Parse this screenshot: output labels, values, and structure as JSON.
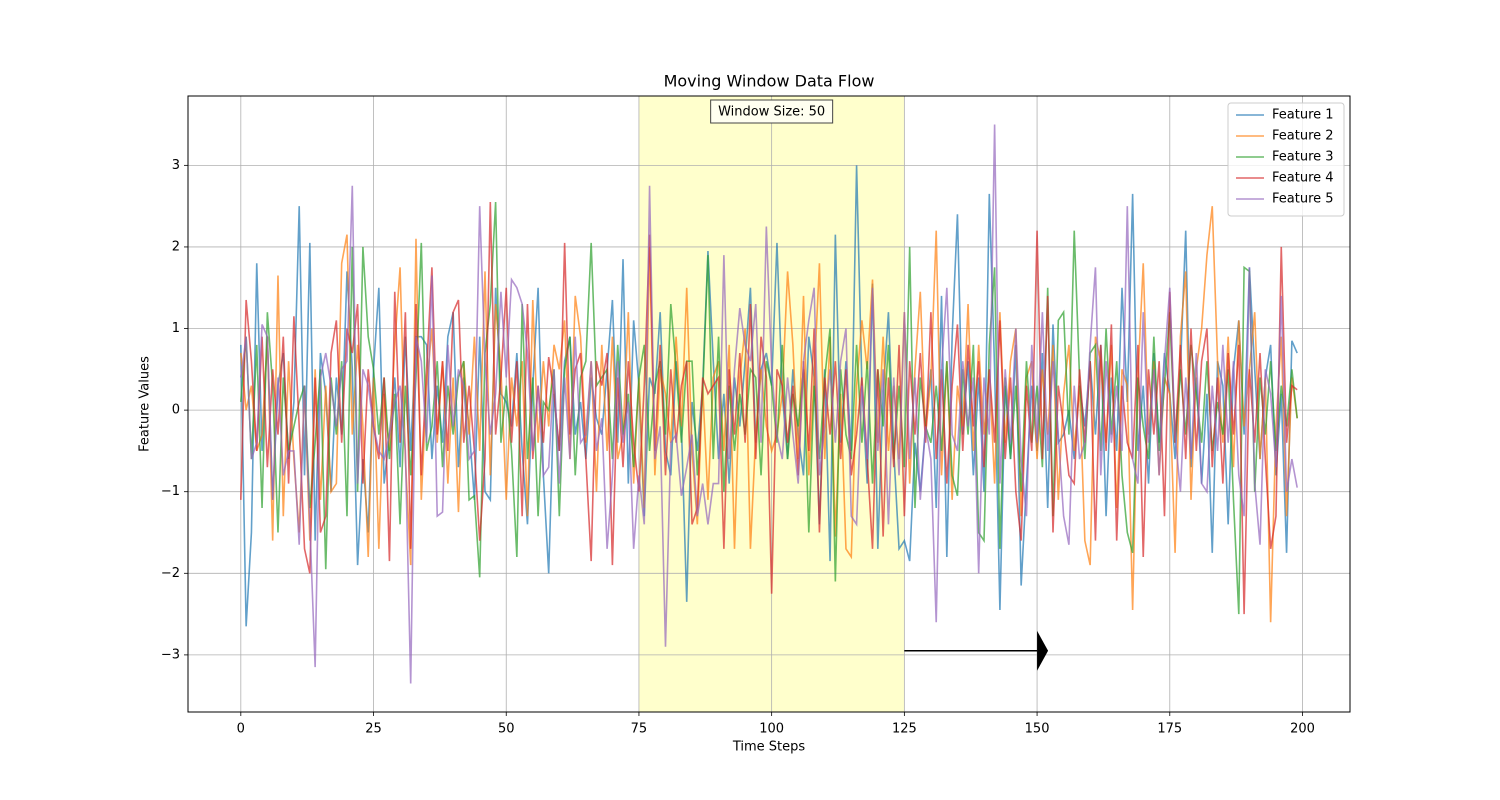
{
  "chart_data": {
    "type": "line",
    "title": "Moving Window Data Flow",
    "xlabel": "Time Steps",
    "ylabel": "Feature Values",
    "x": [
      0,
      1,
      2,
      3,
      4,
      5,
      6,
      7,
      8,
      9,
      10,
      11,
      12,
      13,
      14,
      15,
      16,
      17,
      18,
      19,
      20,
      21,
      22,
      23,
      24,
      25,
      26,
      27,
      28,
      29,
      30,
      31,
      32,
      33,
      34,
      35,
      36,
      37,
      38,
      39,
      40,
      41,
      42,
      43,
      44,
      45,
      46,
      47,
      48,
      49,
      50,
      51,
      52,
      53,
      54,
      55,
      56,
      57,
      58,
      59,
      60,
      61,
      62,
      63,
      64,
      65,
      66,
      67,
      68,
      69,
      70,
      71,
      72,
      73,
      74,
      75,
      76,
      77,
      78,
      79,
      80,
      81,
      82,
      83,
      84,
      85,
      86,
      87,
      88,
      89,
      90,
      91,
      92,
      93,
      94,
      95,
      96,
      97,
      98,
      99,
      100,
      101,
      102,
      103,
      104,
      105,
      106,
      107,
      108,
      109,
      110,
      111,
      112,
      113,
      114,
      115,
      116,
      117,
      118,
      119,
      120,
      121,
      122,
      123,
      124,
      125,
      126,
      127,
      128,
      129,
      130,
      131,
      132,
      133,
      134,
      135,
      136,
      137,
      138,
      139,
      140,
      141,
      142,
      143,
      144,
      145,
      146,
      147,
      148,
      149,
      150,
      151,
      152,
      153,
      154,
      155,
      156,
      157,
      158,
      159,
      160,
      161,
      162,
      163,
      164,
      165,
      166,
      167,
      168,
      169,
      170,
      171,
      172,
      173,
      174,
      175,
      176,
      177,
      178,
      179,
      180,
      181,
      182,
      183,
      184,
      185,
      186,
      187,
      188,
      189,
      190,
      191,
      192,
      193,
      194,
      195,
      196,
      197,
      198,
      199
    ],
    "series": [
      {
        "name": "Feature 1",
        "color": "#1f77b4",
        "values": [
          0.8,
          -2.65,
          -1.5,
          1.8,
          -0.5,
          0.9,
          -1.1,
          0.3,
          0.7,
          -0.6,
          0.1,
          2.5,
          -0.8,
          2.05,
          -1.6,
          0.7,
          0.2,
          -1.0,
          0.4,
          -0.3,
          1.7,
          0.5,
          -1.9,
          -0.6,
          -1.5,
          0.5,
          1.5,
          -0.9,
          -0.3,
          0.4,
          -0.7,
          0.9,
          -0.5,
          0.9,
          0.9,
          0.8,
          -0.6,
          0.3,
          -0.4,
          0.9,
          1.2,
          -0.7,
          0.4,
          -0.2,
          -1.1,
          0.9,
          -1.0,
          -1.1,
          1.5,
          0.2,
          0.1,
          -0.2,
          0.7,
          -0.5,
          -1.4,
          0.3,
          1.5,
          -0.8,
          -2.0,
          0.2,
          -0.5,
          0.6,
          0.9,
          -0.3,
          0.1,
          -0.6,
          0.4,
          -0.1,
          -0.3,
          0.5,
          1.35,
          -0.4,
          1.85,
          -0.9,
          1.1,
          0.3,
          -1.3,
          0.4,
          0.2,
          1.2,
          -0.5,
          -0.8,
          0.6,
          -0.2,
          -2.35,
          0.1,
          -0.5,
          0.3,
          1.95,
          0.6,
          -0.6,
          0.2,
          -0.9,
          0.4,
          -0.2,
          0.6,
          1.5,
          -0.4,
          0.5,
          0.7,
          0.3,
          2.05,
          0.2,
          -0.6,
          0.5,
          -0.3,
          -0.8,
          0.9,
          0.4,
          -1.4,
          0.5,
          -1.85,
          2.15,
          -0.4,
          0.6,
          -0.5,
          3.0,
          0.3,
          -0.9,
          1.55,
          -1.7,
          0.2,
          1.2,
          -0.5,
          -1.7,
          -1.6,
          -1.85,
          -0.4,
          -1.0,
          -0.2,
          0.5,
          -1.2,
          1.4,
          -1.8,
          0.9,
          2.4,
          -0.3,
          0.6,
          -0.8,
          0.4,
          -1.0,
          2.65,
          0.5,
          -2.45,
          0.3,
          -0.6,
          0.8,
          -2.15,
          -0.9,
          0.3,
          -0.5,
          0.7,
          -1.2,
          1.05,
          -0.4,
          -0.3,
          0.0,
          -0.6,
          0.3,
          -0.2,
          0.6,
          -0.3,
          0.8,
          -1.3,
          0.4,
          -0.5,
          1.5,
          0.1,
          2.65,
          -0.5,
          0.3,
          -0.9,
          0.7,
          -0.4,
          0.7,
          0.2,
          -0.6,
          0.5,
          2.2,
          -0.7,
          0.4,
          -0.9,
          0.2,
          -1.75,
          0.6,
          0.3,
          -1.4,
          0.5,
          1.1,
          -0.3,
          1.75,
          0.5,
          -0.6,
          0.4,
          0.8,
          -0.8,
          0.2,
          -1.75,
          0.85,
          0.7
        ]
      },
      {
        "name": "Feature 2",
        "color": "#ff7f0e",
        "values": [
          0.7,
          0.0,
          0.3,
          -0.5,
          -0.3,
          0.9,
          -1.6,
          1.65,
          -1.3,
          0.6,
          -0.6,
          -1.5,
          0.3,
          -1.6,
          0.5,
          -1.1,
          0.3,
          -1.0,
          -0.9,
          1.8,
          2.15,
          -0.3,
          0.8,
          -0.2,
          -1.8,
          0.4,
          -1.7,
          0.2,
          -0.5,
          0.8,
          1.75,
          -0.6,
          -1.9,
          2.1,
          -1.1,
          0.3,
          1.0,
          -0.4,
          0.6,
          -0.9,
          0.4,
          -1.25,
          0.6,
          -0.3,
          0.9,
          -0.5,
          1.7,
          -0.8,
          1.3,
          0.5,
          -1.1,
          0.4,
          -0.2,
          0.6,
          -1.3,
          1.35,
          -0.4,
          0.6,
          -0.2,
          0.8,
          0.5,
          1.1,
          -0.6,
          1.4,
          0.9,
          -0.4,
          0.6,
          -1.0,
          0.8,
          -0.5,
          0.9,
          -0.6,
          -0.3,
          1.2,
          -0.9,
          0.4,
          -1.2,
          2.0,
          -0.8,
          0.5,
          0.2,
          -0.4,
          0.9,
          -0.2,
          1.5,
          -0.5,
          -1.4,
          0.3,
          -1.1,
          0.4,
          0.6,
          -0.5,
          0.8,
          -1.7,
          0.4,
          1.0,
          -1.7,
          -0.3,
          0.5,
          -0.2,
          -0.5,
          -0.3,
          0.2,
          1.7,
          0.8,
          -0.6,
          1.4,
          -0.8,
          0.4,
          1.8,
          -0.6,
          0.9,
          -1.55,
          0.2,
          -1.7,
          -1.8,
          0.3,
          1.1,
          0.5,
          1.6,
          -0.4,
          0.9,
          -0.5,
          0.3,
          -0.6,
          1.2,
          -0.9,
          0.5,
          1.45,
          -0.3,
          0.4,
          2.2,
          -0.8,
          0.6,
          -1.1,
          0.3,
          -0.2,
          1.3,
          -0.5,
          0.8,
          -0.3,
          0.5,
          -0.9,
          1.2,
          -0.4,
          0.6,
          1.0,
          -1.3,
          0.4,
          0.6,
          -0.6,
          0.5,
          -0.3,
          0.8,
          -1.1,
          0.2,
          0.8,
          -0.5,
          0.3,
          -1.6,
          -1.9,
          0.9,
          0.6,
          -0.4,
          0.8,
          -1.2,
          0.5,
          0.3,
          -2.45,
          0.4,
          1.8,
          -0.3,
          0.6,
          -0.8,
          0.4,
          0.2,
          -1.75,
          0.9,
          1.7,
          -1.1,
          0.5,
          1.0,
          1.9,
          2.5,
          0.6,
          -0.4,
          0.9,
          -0.7,
          1.1,
          -0.2,
          0.5,
          1.2,
          -0.6,
          0.4,
          -2.6,
          -0.2,
          0.9,
          -1.3,
          0.4,
          -0.1
        ]
      },
      {
        "name": "Feature 3",
        "color": "#2ca02c",
        "values": [
          0.1,
          0.9,
          -0.6,
          0.8,
          -1.2,
          1.2,
          0.3,
          -1.5,
          0.4,
          -0.5,
          -0.2,
          0.1,
          0.3,
          -1.2,
          -0.4,
          0.5,
          -1.95,
          0.4,
          -0.3,
          0.6,
          -1.3,
          2.0,
          -1.0,
          2.0,
          0.9,
          0.5,
          -0.3,
          0.4,
          -0.6,
          0.2,
          -1.4,
          0.3,
          -0.8,
          0.4,
          2.05,
          -0.5,
          -0.2,
          0.6,
          -0.7,
          0.3,
          -0.3,
          0.4,
          0.6,
          -1.1,
          -1.05,
          -2.05,
          0.7,
          1.3,
          2.55,
          -0.4,
          0.3,
          -0.5,
          -1.8,
          1.3,
          -0.6,
          0.4,
          -1.3,
          0.1,
          0.0,
          0.5,
          -1.3,
          0.5,
          0.9,
          -0.8,
          0.4,
          0.6,
          2.05,
          0.3,
          0.4,
          0.5,
          -0.6,
          0.8,
          -0.3,
          0.2,
          -0.7,
          0.4,
          0.8,
          -0.5,
          0.3,
          0.6,
          -0.3,
          1.3,
          0.5,
          -0.4,
          0.6,
          0.6,
          -0.8,
          0.2,
          1.9,
          -0.6,
          0.9,
          -1.0,
          0.3,
          -0.5,
          0.2,
          -0.3,
          0.5,
          0.4,
          -0.8,
          0.6,
          0.3,
          -0.4,
          0.8,
          -0.6,
          0.2,
          -0.2,
          0.5,
          -1.5,
          0.3,
          -0.6,
          0.4,
          1.0,
          -2.1,
          0.5,
          -0.3,
          -0.6,
          0.8,
          -0.4,
          0.6,
          -0.9,
          0.5,
          -0.2,
          0.8,
          -0.6,
          0.3,
          -0.7,
          2.0,
          -1.2,
          0.4,
          -0.2,
          -0.4,
          0.3,
          -0.5,
          0.6,
          -0.8,
          -1.05,
          0.5,
          -0.3,
          0.8,
          -1.5,
          -1.6,
          0.8,
          1.75,
          -1.7,
          0.4,
          -0.6,
          0.3,
          -1.0,
          0.6,
          -0.4,
          0.3,
          -0.7,
          1.5,
          -1.3,
          1.1,
          1.2,
          -0.3,
          2.2,
          0.4,
          -0.6,
          0.7,
          0.8,
          -0.5,
          1.0,
          -0.3,
          0.6,
          -0.8,
          -1.5,
          -1.75,
          0.4,
          -0.2,
          -0.6,
          0.9,
          -0.5,
          0.3,
          1.2,
          -0.4,
          0.5,
          -0.3,
          0.8,
          0.2,
          -0.4,
          0.6,
          -0.5,
          0.1,
          -0.3,
          0.5,
          -1.1,
          -2.5,
          1.75,
          1.7,
          -1.0,
          0.4,
          -0.3,
          0.6,
          -0.5,
          0.3,
          -0.2,
          0.5,
          -0.1
        ]
      },
      {
        "name": "Feature 4",
        "color": "#d62728",
        "values": [
          -1.1,
          1.35,
          0.6,
          -0.5,
          0.9,
          -0.7,
          0.5,
          -0.3,
          0.9,
          -0.9,
          1.15,
          -0.2,
          -1.7,
          -2.0,
          0.4,
          -1.5,
          -1.3,
          0.7,
          1.1,
          -0.4,
          1.0,
          0.7,
          1.3,
          -0.9,
          0.5,
          -0.2,
          -0.6,
          0.4,
          -1.85,
          1.45,
          -0.4,
          1.2,
          -1.7,
          1.3,
          -0.8,
          0.5,
          1.75,
          -0.3,
          0.6,
          -0.5,
          1.2,
          1.35,
          -0.4,
          0.3,
          -0.5,
          -1.6,
          -0.6,
          2.55,
          -0.3,
          0.4,
          1.5,
          -0.4,
          0.6,
          -1.3,
          1.3,
          -0.6,
          0.3,
          -0.4,
          0.65,
          0.2,
          -0.5,
          2.05,
          -0.3,
          0.5,
          0.7,
          -0.6,
          -1.85,
          0.6,
          0.3,
          0.7,
          -1.9,
          0.4,
          -0.7,
          0.6,
          -0.4,
          -1.0,
          0.3,
          2.15,
          -0.5,
          0.8,
          -0.8,
          0.5,
          -0.4,
          0.3,
          0.6,
          -1.4,
          -1.2,
          0.4,
          0.2,
          0.3,
          0.4,
          -1.7,
          0.5,
          -0.3,
          0.7,
          -0.4,
          1.3,
          -0.6,
          0.9,
          0.4,
          -2.25,
          0.5,
          0.3,
          -0.4,
          0.3,
          -0.8,
          0.6,
          -0.5,
          1.0,
          -1.5,
          0.4,
          -0.3,
          0.6,
          -0.6,
          0.5,
          -0.8,
          -0.3,
          0.4,
          -0.6,
          -1.7,
          0.5,
          -1.55,
          0.4,
          -0.7,
          0.8,
          -1.3,
          0.6,
          -0.3,
          0.7,
          -0.4,
          1.2,
          -0.6,
          0.5,
          -0.9,
          0.3,
          1.05,
          -0.5,
          0.8,
          -0.2,
          0.6,
          -0.7,
          0.5,
          -0.4,
          1.1,
          -0.6,
          0.4,
          -1.0,
          -1.6,
          0.3,
          -0.5,
          2.2,
          -0.6,
          1.4,
          -1.5,
          0.3,
          -0.2,
          -0.8,
          -0.9,
          0.5,
          -0.4,
          0.6,
          -1.6,
          0.8,
          -0.5,
          1.05,
          -1.6,
          0.3,
          -0.4,
          -0.6,
          0.8,
          -1.8,
          0.5,
          -0.3,
          0.6,
          -1.3,
          1.45,
          -0.4,
          0.8,
          -0.6,
          1.0,
          -0.5,
          0.6,
          1.0,
          -0.7,
          0.4,
          -0.9,
          0.7,
          -0.3,
          0.8,
          -2.5,
          0.5,
          -0.4,
          0.7,
          -0.6,
          -1.7,
          -1.3,
          2.0,
          -0.4,
          0.3,
          0.25
        ]
      },
      {
        "name": "Feature 5",
        "color": "#9467bd",
        "values": [
          0.4,
          0.9,
          -0.6,
          -0.4,
          1.05,
          0.9,
          -1.1,
          0.4,
          -0.8,
          -0.5,
          -0.5,
          -1.65,
          0.3,
          -1.4,
          -3.15,
          0.4,
          0.7,
          0.3,
          -0.2,
          0.5,
          0.6,
          2.75,
          -0.9,
          0.5,
          0.3,
          -0.2,
          -0.5,
          -0.6,
          -0.3,
          0.1,
          0.3,
          -0.5,
          -3.35,
          0.9,
          0.6,
          -0.4,
          1.65,
          -1.3,
          -1.25,
          0.8,
          -0.2,
          0.5,
          0.3,
          -0.6,
          -0.5,
          2.5,
          0.6,
          -0.3,
          0.2,
          1.45,
          0.4,
          1.6,
          1.5,
          1.3,
          0.7,
          -0.5,
          0.3,
          -0.8,
          -0.7,
          0.5,
          -0.9,
          0.4,
          -0.6,
          0.9,
          -0.4,
          -0.3,
          0.6,
          -0.5,
          -0.1,
          -1.7,
          -0.8,
          0.6,
          -0.4,
          0.1,
          -1.7,
          -0.8,
          -1.4,
          2.75,
          -0.6,
          -0.2,
          -2.9,
          -0.4,
          -0.3,
          -1.05,
          -0.7,
          -0.3,
          -1.3,
          -0.9,
          -1.4,
          -0.9,
          -0.9,
          1.9,
          -0.6,
          0.5,
          1.25,
          0.8,
          0.6,
          1.3,
          -0.4,
          2.25,
          0.5,
          -0.3,
          -0.6,
          0.4,
          -0.3,
          -0.9,
          0.6,
          1.1,
          1.5,
          -0.8,
          -0.2,
          0.5,
          -0.4,
          0.6,
          1.0,
          -1.3,
          -1.4,
          0.3,
          -0.6,
          1.5,
          -0.5,
          0.5,
          -1.4,
          0.4,
          -0.8,
          1.2,
          -0.6,
          0.4,
          -1.1,
          -0.2,
          -0.6,
          -2.6,
          0.5,
          1.5,
          -0.3,
          -0.5,
          0.6,
          -0.2,
          0.4,
          -2.0,
          0.4,
          -0.3,
          3.5,
          -0.9,
          0.5,
          -0.4,
          1.0,
          -0.6,
          -1.3,
          0.8,
          -0.4,
          1.2,
          -0.5,
          0.6,
          -0.3,
          -1.3,
          -1.65,
          0.3,
          -0.6,
          -0.4,
          0.8,
          1.75,
          -0.8,
          0.6,
          -0.4,
          0.3,
          -0.5,
          2.5,
          -0.6,
          -0.9,
          1.2,
          -0.4,
          0.5,
          -0.8,
          0.6,
          1.5,
          -0.3,
          -1.0,
          0.4,
          -0.6,
          0.7,
          -0.9,
          -1.0,
          0.3,
          -0.5,
          0.8,
          -0.4,
          0.6,
          -0.8,
          -1.3,
          1.75,
          -0.9,
          -1.65,
          0.5,
          0.2,
          -0.7,
          1.4,
          -1.0,
          -0.6,
          -0.95
        ]
      }
    ],
    "xlim": [
      -9.95,
      208.95
    ],
    "ylim": [
      -3.7,
      3.85
    ],
    "xticks": [
      0,
      25,
      50,
      75,
      100,
      125,
      150,
      175,
      200
    ],
    "yticks": [
      {
        "value": -3,
        "label": "−3"
      },
      {
        "value": -2,
        "label": "−2"
      },
      {
        "value": -1,
        "label": "−1"
      },
      0,
      1,
      2,
      3
    ],
    "grid": true,
    "legend": "upper right",
    "window": {
      "start": 75,
      "end": 125,
      "color": "#ffff99"
    },
    "annotation": "Window Size: 50",
    "arrow": {
      "x_start": 125,
      "x_end": 150,
      "y": -2.95
    }
  }
}
